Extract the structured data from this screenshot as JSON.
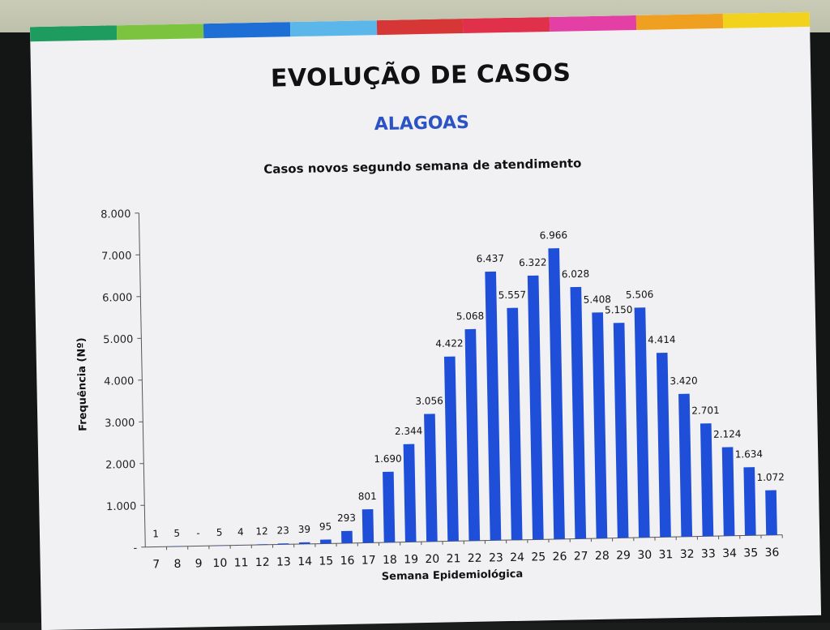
{
  "slide": {
    "title": "EVOLUÇÃO DE CASOS",
    "subtitle": "ALAGOAS",
    "header_strip_colors": [
      "#1e9b5e",
      "#7cc440",
      "#1d6fd6",
      "#5bb7ea",
      "#d63636",
      "#e0304a",
      "#e33fa5",
      "#f0a021",
      "#f2d21d"
    ],
    "subtitle_color": "#2c53c4"
  },
  "chart_data": {
    "type": "bar",
    "title": "Casos novos segundo semana de atendimento",
    "xlabel": "Semana Epidemiológica",
    "ylabel": "Frequência (Nº)",
    "ylim": [
      0,
      8000
    ],
    "y_ticks": [
      "-",
      "1.000",
      "2.000",
      "3.000",
      "4.000",
      "5.000",
      "6.000",
      "7.000",
      "8.000"
    ],
    "bar_color": "#1f4fd8",
    "grid": false,
    "categories": [
      "7",
      "8",
      "9",
      "10",
      "11",
      "12",
      "13",
      "14",
      "15",
      "16",
      "17",
      "18",
      "19",
      "20",
      "21",
      "22",
      "23",
      "24",
      "25",
      "26",
      "27",
      "28",
      "29",
      "30",
      "31",
      "32",
      "33",
      "34",
      "35",
      "36"
    ],
    "values": [
      1,
      5,
      0,
      5,
      4,
      12,
      23,
      39,
      95,
      293,
      801,
      1690,
      2344,
      3056,
      4422,
      5068,
      6437,
      5557,
      6322,
      6966,
      6028,
      5408,
      5150,
      5506,
      4414,
      3420,
      2701,
      2124,
      1634,
      1072
    ],
    "data_labels": [
      "1",
      "5",
      "-",
      "5",
      "4",
      "12",
      "23",
      "39",
      "95",
      "293",
      "801",
      "1.690",
      "2.344",
      "3.056",
      "4.422",
      "5.068",
      "6.437",
      "5.557",
      "6.322",
      "6.966",
      "6.028",
      "5.408",
      "5.150",
      "5.506",
      "4.414",
      "3.420",
      "2.701",
      "2.124",
      "1.634",
      "1.072"
    ]
  }
}
